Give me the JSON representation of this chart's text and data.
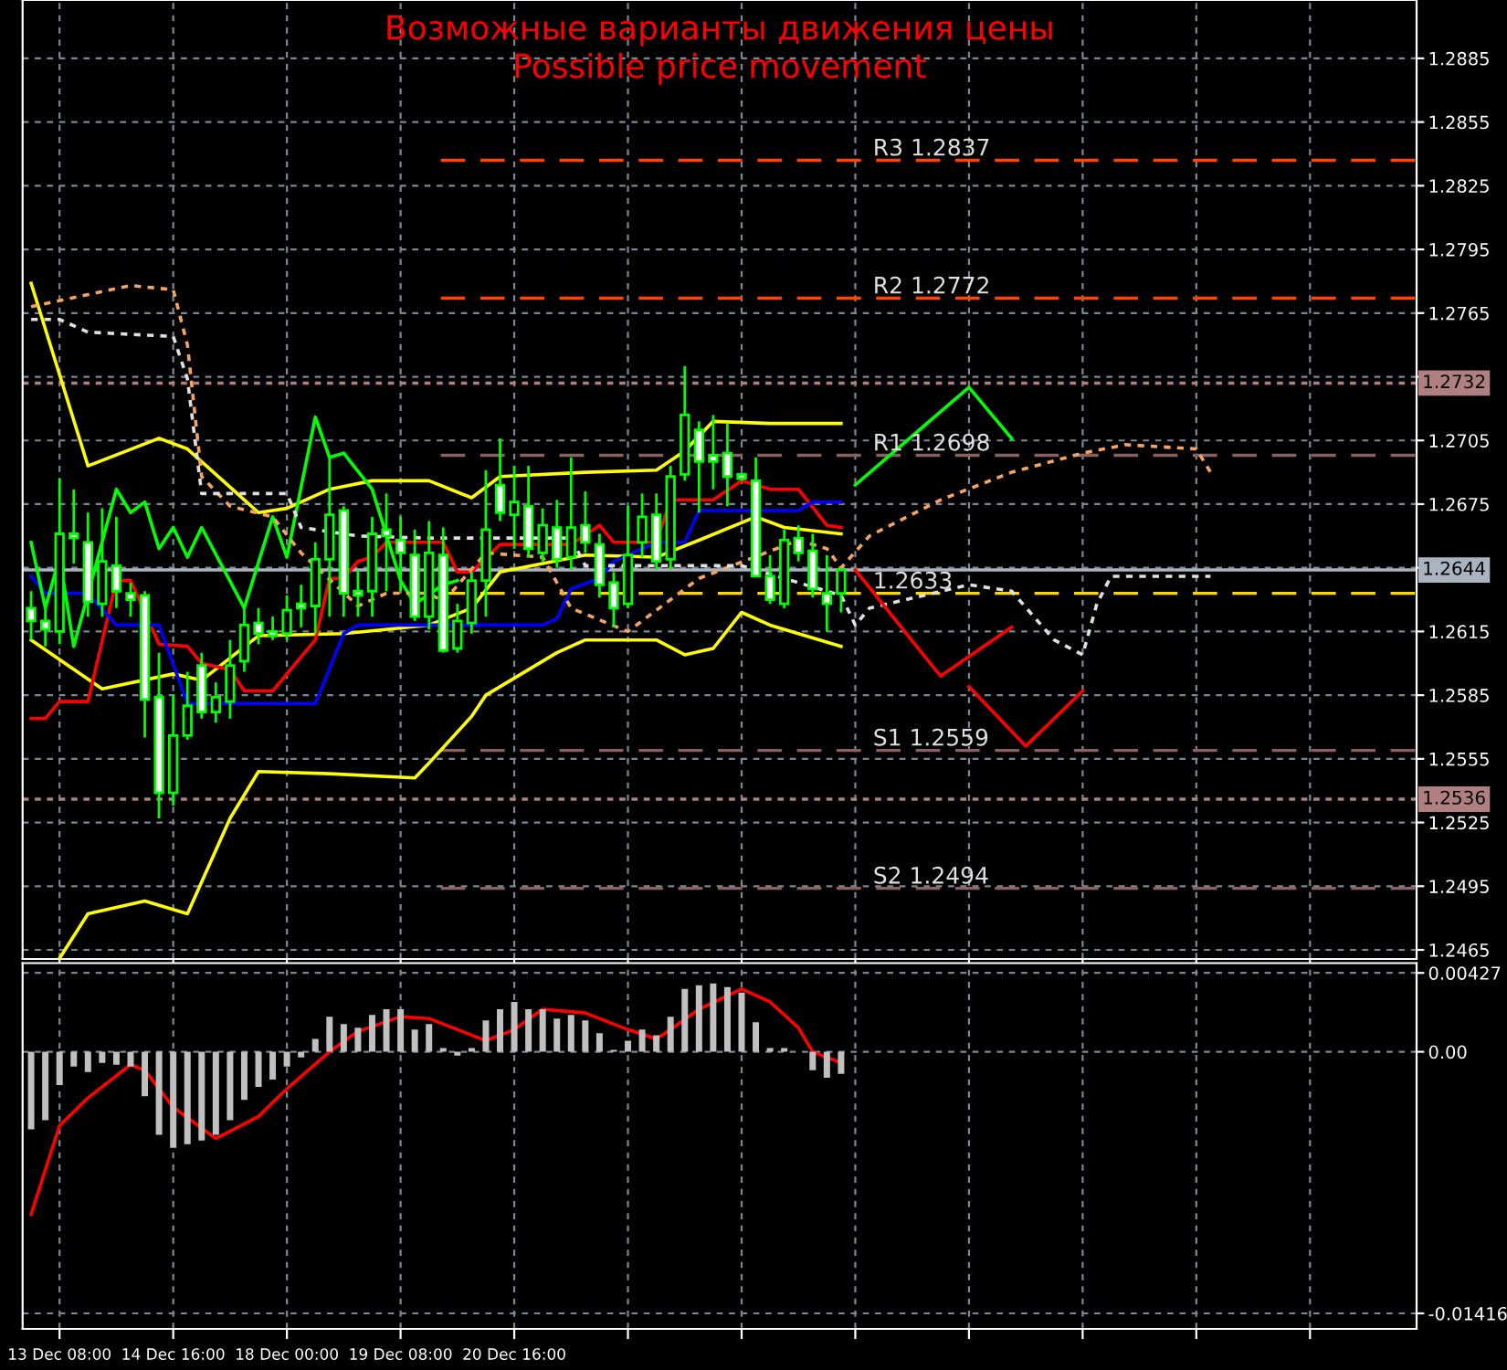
{
  "chart_data": [
    {
      "type": "candlestick",
      "title": "Возможные варианты движения цены",
      "subtitle": "Possible price movement",
      "categories": [
        null,
        null,
        null,
        null,
        null,
        null,
        null,
        null,
        null,
        null,
        null,
        null,
        null,
        null,
        null,
        null,
        null,
        null,
        null,
        null,
        null,
        null,
        null,
        null,
        null,
        null,
        null,
        null,
        null,
        null,
        null,
        null,
        null,
        null,
        null,
        null,
        null,
        null,
        null,
        null,
        null,
        null,
        null,
        null,
        null,
        null,
        null,
        null,
        null,
        null,
        null,
        null,
        null,
        null,
        null,
        null,
        null,
        null,
        null,
        null,
        null,
        null,
        null,
        null,
        null,
        null,
        null,
        null,
        null,
        null,
        null,
        null,
        null,
        null,
        null,
        null,
        null,
        null,
        null,
        null,
        null,
        null,
        null,
        null,
        null,
        null,
        null,
        null,
        null,
        null,
        null,
        null,
        null,
        null,
        null,
        null,
        null,
        null
      ],
      "ohlc": [
        [
          1.2626,
          1.2634,
          1.2611,
          1.262
        ],
        [
          1.262,
          1.2628,
          1.2608,
          1.2616
        ],
        [
          1.2615,
          1.2687,
          1.2609,
          1.2661
        ],
        [
          1.2661,
          1.2682,
          1.2647,
          1.2659
        ],
        [
          1.2657,
          1.2671,
          1.2622,
          1.2629
        ],
        [
          1.2628,
          1.2673,
          1.2622,
          1.2648
        ],
        [
          1.2646,
          1.2669,
          1.2626,
          1.2634
        ],
        [
          1.2633,
          1.2638,
          1.2622,
          1.263
        ],
        [
          1.2632,
          1.2634,
          1.2565,
          1.2583
        ],
        [
          1.2584,
          1.2605,
          1.2527,
          1.2539
        ],
        [
          1.2539,
          1.2585,
          1.2533,
          1.2566
        ],
        [
          1.2566,
          1.2596,
          1.2564,
          1.258
        ],
        [
          1.2599,
          1.2605,
          1.2574,
          1.2577
        ],
        [
          1.2577,
          1.2591,
          1.2572,
          1.2584
        ],
        [
          1.2582,
          1.2611,
          1.2574,
          1.2599
        ],
        [
          1.2601,
          1.2626,
          1.2596,
          1.2618
        ],
        [
          1.2619,
          1.2626,
          1.2609,
          1.2614
        ],
        [
          1.2615,
          1.2622,
          1.2611,
          1.2613
        ],
        [
          1.2614,
          1.2632,
          1.2611,
          1.2625
        ],
        [
          1.2628,
          1.2637,
          1.2617,
          1.2626
        ],
        [
          1.2627,
          1.2657,
          1.2614,
          1.2649
        ],
        [
          1.2649,
          1.2697,
          1.2622,
          1.267
        ],
        [
          1.2672,
          1.2674,
          1.2622,
          1.2633
        ],
        [
          1.2634,
          1.2644,
          1.2622,
          1.2632
        ],
        [
          1.2634,
          1.2669,
          1.2622,
          1.2661
        ],
        [
          1.2663,
          1.268,
          1.2634,
          1.266
        ],
        [
          1.2658,
          1.2669,
          1.2634,
          1.2652
        ],
        [
          1.2651,
          1.2663,
          1.262,
          1.2622
        ],
        [
          1.2622,
          1.2667,
          1.2616,
          1.2652
        ],
        [
          1.2651,
          1.2664,
          1.2605,
          1.2606
        ],
        [
          1.2607,
          1.2628,
          1.2605,
          1.262
        ],
        [
          1.2619,
          1.2643,
          1.2614,
          1.2639
        ],
        [
          1.2639,
          1.2691,
          1.2622,
          1.2663
        ],
        [
          1.2684,
          1.2706,
          1.2667,
          1.2671
        ],
        [
          1.267,
          1.2693,
          1.2654,
          1.2676
        ],
        [
          1.2674,
          1.2693,
          1.265,
          1.2654
        ],
        [
          1.2652,
          1.2673,
          1.2648,
          1.2665
        ],
        [
          1.2664,
          1.2677,
          1.2645,
          1.2649
        ],
        [
          1.265,
          1.2697,
          1.2644,
          1.2664
        ],
        [
          1.2665,
          1.2681,
          1.2652,
          1.2657
        ],
        [
          1.2656,
          1.2661,
          1.2631,
          1.2637
        ],
        [
          1.2638,
          1.2643,
          1.2617,
          1.2626
        ],
        [
          1.2628,
          1.2674,
          1.2626,
          1.2651
        ],
        [
          1.2657,
          1.268,
          1.265,
          1.2669
        ],
        [
          1.267,
          1.268,
          1.2644,
          1.2648
        ],
        [
          1.2649,
          1.2693,
          1.2644,
          1.2688
        ],
        [
          1.2689,
          1.274,
          1.2686,
          1.2717
        ],
        [
          1.271,
          1.2714,
          1.2671,
          1.2695
        ],
        [
          1.2698,
          1.2717,
          1.2682,
          1.2695
        ],
        [
          1.2699,
          1.2713,
          1.2674,
          1.2688
        ],
        [
          1.2689,
          1.269,
          1.2686,
          1.2687
        ],
        [
          1.2686,
          1.2697,
          1.2641,
          1.2641
        ],
        [
          1.2641,
          1.2651,
          1.2628,
          1.263
        ],
        [
          1.2628,
          1.2663,
          1.2626,
          1.2658
        ],
        [
          1.2659,
          1.2665,
          1.2648,
          1.2652
        ],
        [
          1.2653,
          1.2661,
          1.2631,
          1.2635
        ],
        [
          1.2633,
          1.2651,
          1.2615,
          1.2628
        ],
        [
          1.2633,
          1.2645,
          1.2624,
          1.2644
        ],
        null,
        null,
        null,
        null,
        null,
        null,
        null,
        null,
        null,
        null,
        null,
        null,
        null,
        null,
        null,
        null,
        null,
        null,
        null,
        null,
        null,
        null,
        null,
        null,
        null,
        null,
        null,
        null,
        null,
        null,
        null,
        null,
        null,
        null,
        null,
        null,
        null,
        null,
        null,
        null
      ],
      "series": [
        {
          "type": "line",
          "color": "#ffff00",
          "line_style": "solid",
          "values": [
            1.2779,
            null,
            null,
            null,
            1.2693,
            null,
            null,
            null,
            null,
            1.2706,
            null,
            1.2701,
            null,
            null,
            null,
            null,
            1.2671,
            null,
            1.2673,
            null,
            null,
            1.2682,
            null,
            null,
            1.2686,
            null,
            null,
            null,
            1.2686,
            null,
            null,
            1.2678,
            null,
            1.2688,
            null,
            null,
            null,
            null,
            null,
            1.269,
            null,
            null,
            null,
            null,
            1.2691,
            null,
            1.27,
            null,
            1.2714,
            null,
            null,
            null,
            1.2713,
            null,
            null,
            null,
            null,
            1.2713,
            null,
            null,
            null,
            null,
            null,
            null,
            null,
            null,
            null,
            null,
            null,
            null,
            null,
            null,
            null,
            null,
            null,
            null,
            null,
            null,
            null,
            null,
            null,
            null,
            null,
            null,
            null,
            null,
            null,
            null,
            null,
            null,
            null,
            null,
            null,
            null,
            null,
            null,
            null,
            null
          ]
        },
        {
          "type": "line",
          "color": "#ffff00",
          "line_style": "solid",
          "values": [
            1.2611,
            null,
            null,
            null,
            null,
            1.2588,
            null,
            null,
            null,
            null,
            1.2595,
            null,
            1.2592,
            null,
            null,
            null,
            1.2613,
            null,
            null,
            null,
            null,
            null,
            1.2614,
            null,
            null,
            null,
            null,
            null,
            1.2618,
            null,
            null,
            1.2626,
            null,
            1.2643,
            null,
            null,
            null,
            null,
            null,
            1.2651,
            null,
            null,
            null,
            null,
            1.265,
            null,
            null,
            1.2658,
            null,
            null,
            null,
            1.2669,
            null,
            1.2664,
            null,
            null,
            null,
            1.2661,
            null,
            null,
            null,
            null,
            null,
            null,
            null,
            null,
            null,
            null,
            null,
            null,
            null,
            null,
            null,
            null,
            null,
            null,
            null,
            null,
            null,
            null,
            null,
            null,
            null,
            null,
            null,
            null,
            null,
            null,
            null,
            null,
            null,
            null,
            null,
            null,
            null,
            null,
            null,
            null
          ]
        },
        {
          "type": "line",
          "color": "#ffff00",
          "line_style": "solid",
          "values": [
            null,
            null,
            1.2461,
            null,
            1.2482,
            null,
            null,
            null,
            1.2488,
            null,
            null,
            1.2482,
            null,
            null,
            1.2527,
            null,
            1.2549,
            null,
            null,
            null,
            null,
            1.2548,
            null,
            null,
            null,
            null,
            null,
            1.2546,
            1.2553,
            null,
            null,
            1.2575,
            1.2585,
            null,
            null,
            null,
            null,
            1.2605,
            null,
            1.2611,
            null,
            null,
            null,
            null,
            1.2611,
            null,
            1.2604,
            null,
            1.2607,
            null,
            1.2624,
            null,
            1.2618,
            null,
            null,
            null,
            null,
            1.2608,
            null,
            null,
            null,
            null,
            null,
            null,
            null,
            null,
            null,
            null,
            null,
            null,
            null,
            null,
            null,
            null,
            null,
            null,
            null,
            null,
            null,
            null,
            null,
            null,
            null,
            null,
            null,
            null,
            null,
            null,
            null,
            null,
            null,
            null,
            null,
            null,
            null,
            null,
            null,
            null
          ]
        },
        {
          "type": "line",
          "color": "#ff0000",
          "line_style": "solid",
          "values": [
            1.2574,
            1.2574,
            1.2582,
            null,
            1.2582,
            null,
            1.2639,
            1.2639,
            null,
            1.2609,
            null,
            1.2608,
            1.26,
            null,
            1.2597,
            1.2587,
            null,
            1.2587,
            null,
            null,
            1.2611,
            1.264,
            1.264,
            1.2648,
            1.265,
            1.2657,
            null,
            null,
            null,
            1.2657,
            1.2643,
            1.2643,
            null,
            1.2656,
            null,
            null,
            null,
            null,
            1.2656,
            null,
            1.2665,
            1.2657,
            null,
            null,
            1.2657,
            1.2677,
            null,
            null,
            1.2677,
            null,
            1.2686,
            null,
            1.2682,
            null,
            1.2682,
            null,
            1.2665,
            1.2664,
            null,
            null,
            null,
            null,
            null,
            null,
            null,
            null,
            null,
            null,
            null,
            null,
            null,
            null,
            null,
            null,
            null,
            null,
            null,
            null,
            null,
            null,
            null,
            null,
            null,
            null,
            null,
            null,
            null,
            null,
            null,
            null,
            null,
            null,
            null,
            null,
            null,
            null,
            null,
            null
          ]
        },
        {
          "type": "line",
          "color": "#0000ff",
          "line_style": "solid",
          "values": [
            1.2641,
            1.2633,
            null,
            null,
            1.2633,
            null,
            1.2618,
            null,
            null,
            1.2618,
            null,
            1.2581,
            null,
            null,
            null,
            null,
            null,
            null,
            null,
            null,
            1.2581,
            null,
            1.2614,
            1.2618,
            null,
            null,
            null,
            null,
            null,
            null,
            null,
            null,
            null,
            null,
            null,
            null,
            1.2618,
            1.2621,
            1.2635,
            null,
            1.264,
            1.2648,
            null,
            null,
            1.2657,
            null,
            1.2657,
            1.2672,
            null,
            null,
            null,
            null,
            null,
            null,
            1.2672,
            1.2676,
            null,
            1.2676,
            null,
            null,
            null,
            null,
            null,
            null,
            null,
            null,
            null,
            null,
            null,
            null,
            null,
            null,
            null,
            null,
            null,
            null,
            null,
            null,
            null,
            null,
            null,
            null,
            null,
            null,
            null,
            null,
            null,
            null,
            null,
            null,
            null,
            null,
            null,
            null,
            null,
            null,
            null,
            null
          ]
        },
        {
          "type": "line",
          "color": "#00ff00",
          "line_style": "solid",
          "values": [
            1.2657,
            1.2626,
            1.265,
            1.2608,
            null,
            null,
            1.2682,
            1.2671,
            1.2676,
            1.2654,
            1.2664,
            1.265,
            1.2664,
            null,
            null,
            1.2626,
            null,
            1.2669,
            1.265,
            null,
            1.2716,
            1.2697,
            1.2699,
            null,
            1.2682,
            null,
            1.2639,
            1.2628,
            null,
            1.2637,
            1.2639,
            null,
            null,
            null,
            null,
            null,
            null,
            null,
            null,
            null,
            null,
            null,
            null,
            null,
            null,
            null,
            null,
            null,
            null,
            null,
            null,
            null,
            null,
            null,
            null,
            null,
            null,
            null,
            null,
            null,
            null,
            null,
            null,
            null,
            null,
            null,
            null,
            null,
            null,
            null,
            null,
            null,
            null,
            null,
            null,
            null,
            null,
            null,
            null,
            null,
            null,
            null,
            null,
            null,
            null,
            null,
            null,
            null,
            null,
            null,
            null,
            null,
            null,
            null,
            null,
            null,
            null,
            null
          ]
        },
        {
          "type": "line",
          "color": "#f4a460",
          "line_style": "dotted",
          "values": [
            1.2768,
            null,
            null,
            null,
            null,
            null,
            null,
            1.2778,
            null,
            null,
            1.2776,
            1.275,
            1.2688,
            null,
            1.2674,
            null,
            null,
            1.2669,
            null,
            1.2652,
            null,
            null,
            null,
            1.2627,
            null,
            1.2633,
            null,
            null,
            1.2633,
            1.2629,
            null,
            null,
            1.2652,
            null,
            null,
            null,
            1.265,
            null,
            1.2626,
            null,
            null,
            null,
            1.2615,
            1.262,
            null,
            null,
            null,
            1.264,
            null,
            null,
            null,
            null,
            null,
            null,
            1.2658,
            null,
            1.2654,
            1.2645,
            null,
            1.266,
            null,
            null,
            null,
            null,
            1.2677,
            null,
            null,
            null,
            null,
            1.269,
            null,
            null,
            null,
            null,
            1.2699,
            null,
            null,
            1.2703,
            null,
            null,
            null,
            null,
            1.2701,
            1.269,
            null,
            null,
            null,
            null,
            null,
            null,
            null,
            null,
            null,
            null,
            null,
            null,
            null,
            null
          ]
        },
        {
          "type": "line",
          "color": "#e0e0e0",
          "line_style": "dotted",
          "values": [
            1.2762,
            null,
            1.2762,
            null,
            1.2756,
            null,
            null,
            null,
            null,
            null,
            1.2754,
            1.2734,
            1.268,
            null,
            null,
            null,
            null,
            null,
            1.268,
            1.2664,
            null,
            null,
            null,
            1.266,
            null,
            null,
            null,
            null,
            1.2659,
            null,
            null,
            null,
            null,
            null,
            null,
            null,
            null,
            null,
            1.2659,
            1.2646,
            null,
            null,
            null,
            null,
            null,
            null,
            null,
            null,
            null,
            null,
            1.2646,
            null,
            null,
            null,
            null,
            null,
            null,
            1.2632,
            1.2618,
            1.2626,
            null,
            null,
            null,
            null,
            null,
            null,
            1.2637,
            null,
            null,
            1.2634,
            null,
            null,
            1.2611,
            null,
            1.2604,
            1.2628,
            1.2641,
            null,
            null,
            null,
            null,
            null,
            null,
            1.2641,
            null,
            null,
            null,
            null,
            null,
            null,
            null,
            null,
            null,
            null,
            null,
            null,
            null,
            null
          ]
        },
        {
          "type": "line",
          "color": "#00ff00",
          "line_style": "solid",
          "values": [
            null,
            null,
            null,
            null,
            null,
            null,
            null,
            null,
            null,
            null,
            null,
            null,
            null,
            null,
            null,
            null,
            null,
            null,
            null,
            null,
            null,
            null,
            null,
            null,
            null,
            null,
            null,
            null,
            null,
            null,
            null,
            null,
            null,
            null,
            null,
            null,
            null,
            null,
            null,
            null,
            null,
            null,
            null,
            null,
            null,
            null,
            null,
            null,
            null,
            null,
            null,
            null,
            null,
            null,
            null,
            null,
            null,
            null,
            1.2684,
            null,
            null,
            null,
            null,
            null,
            null,
            null,
            1.273,
            null,
            null,
            1.2706,
            null,
            null,
            null,
            null,
            null,
            null,
            null,
            null,
            null,
            null,
            null,
            null,
            null,
            null,
            null,
            null,
            null,
            null,
            null,
            null,
            null,
            null,
            null,
            null,
            null,
            null,
            null,
            null
          ]
        },
        {
          "type": "line",
          "color": "#ff0000",
          "line_style": "solid",
          "values": [
            null,
            null,
            null,
            null,
            null,
            null,
            null,
            null,
            null,
            null,
            null,
            null,
            null,
            null,
            null,
            null,
            null,
            null,
            null,
            null,
            null,
            null,
            null,
            null,
            null,
            null,
            null,
            null,
            null,
            null,
            null,
            null,
            null,
            null,
            null,
            null,
            null,
            null,
            null,
            null,
            null,
            null,
            null,
            null,
            null,
            null,
            null,
            null,
            null,
            null,
            null,
            null,
            null,
            null,
            null,
            null,
            null,
            null,
            1.2644,
            null,
            null,
            null,
            null,
            null,
            1.2594,
            null,
            null,
            null,
            null,
            1.2617,
            null,
            null,
            null,
            null,
            null,
            null,
            null,
            null,
            null,
            null,
            null,
            null,
            null,
            null,
            null,
            null,
            null,
            null,
            null,
            null,
            null,
            null,
            null,
            null,
            null,
            null,
            null,
            null
          ]
        },
        {
          "type": "line",
          "color": "#ff0000",
          "line_style": "solid",
          "values": [
            null,
            null,
            null,
            null,
            null,
            null,
            null,
            null,
            null,
            null,
            null,
            null,
            null,
            null,
            null,
            null,
            null,
            null,
            null,
            null,
            null,
            null,
            null,
            null,
            null,
            null,
            null,
            null,
            null,
            null,
            null,
            null,
            null,
            null,
            null,
            null,
            null,
            null,
            null,
            null,
            null,
            null,
            null,
            null,
            null,
            null,
            null,
            null,
            null,
            null,
            null,
            null,
            null,
            null,
            null,
            null,
            null,
            null,
            null,
            null,
            null,
            null,
            null,
            null,
            null,
            null,
            1.2589,
            null,
            null,
            null,
            1.2561,
            null,
            null,
            null,
            1.2587,
            null,
            null,
            null,
            null,
            null,
            null,
            null,
            null,
            null,
            null,
            null,
            null,
            null,
            null,
            null,
            null,
            null,
            null,
            null,
            null,
            null,
            null,
            null
          ]
        }
      ],
      "ref_lines": [
        {
          "axis": "y",
          "value": 1.2837,
          "label": "R3 1.2837",
          "color": "#ff4500",
          "line_style": "dashed"
        },
        {
          "axis": "y",
          "value": 1.2772,
          "label": "R2 1.2772",
          "color": "#ff4500",
          "line_style": "dashed"
        },
        {
          "axis": "y",
          "value": 1.2698,
          "label": "R1 1.2698",
          "color": "#8b6060",
          "line_style": "dashed"
        },
        {
          "axis": "y",
          "value": 1.2633,
          "label": "1.2633",
          "color": "#ffd700",
          "line_style": "dashed"
        },
        {
          "axis": "y",
          "value": 1.2559,
          "label": "S1 1.2559",
          "color": "#8b6060",
          "line_style": "dashed"
        },
        {
          "axis": "y",
          "value": 1.2494,
          "label": "S2 1.2494",
          "color": "#8b6060",
          "line_style": "dashed"
        },
        {
          "axis": "y",
          "value": 1.2732,
          "label": "1.2732",
          "color": "#b08080",
          "line_style": "dotted"
        },
        {
          "axis": "y",
          "value": 1.2536,
          "label": "1.2536",
          "color": "#b08080",
          "line_style": "dotted"
        },
        {
          "axis": "y",
          "value": 1.2644,
          "label": "1.2644",
          "color": "#a9b4c0",
          "line_style": "solid"
        }
      ],
      "ylim": [
        1.24607,
        1.29125
      ],
      "yticks": [
        1.2885,
        1.2855,
        1.2825,
        1.2795,
        1.2765,
        {
          "value": 1.2735,
          "label": null
        },
        1.2705,
        1.2675,
        {
          "value": 1.2645,
          "label": null
        },
        1.2615,
        1.2585,
        1.2555,
        1.2525,
        1.2495,
        1.2465
      ],
      "tick_labels": "y",
      "grid": true
    },
    {
      "type": "bar",
      "color": "#c0c0c0",
      "categories": [
        null,
        null,
        "13 Dec 08:00",
        null,
        null,
        null,
        null,
        null,
        null,
        null,
        "14 Dec 16:00",
        null,
        null,
        null,
        null,
        null,
        null,
        null,
        "18 Dec 00:00",
        null,
        null,
        null,
        null,
        null,
        null,
        null,
        "19 Dec 08:00",
        null,
        null,
        null,
        null,
        null,
        null,
        null,
        "20 Dec 16:00",
        null,
        null,
        null,
        null,
        null,
        null,
        null,
        null,
        null,
        null,
        null,
        null,
        null,
        null,
        null,
        null,
        null,
        null,
        null,
        null,
        null,
        null,
        null,
        null,
        null,
        null,
        null,
        null,
        null,
        null,
        null,
        null,
        null,
        null,
        null,
        null,
        null,
        null,
        null,
        null,
        null,
        null,
        null,
        null,
        null,
        null,
        null,
        null,
        null,
        null,
        null,
        null,
        null,
        null,
        null,
        null,
        null,
        null,
        null,
        null,
        null,
        null,
        null
      ],
      "values": [
        -0.0042,
        -0.0037,
        -0.0018,
        -0.0008,
        -0.0011,
        -0.0006,
        -0.0007,
        -0.0008,
        -0.0024,
        -0.0045,
        -0.0052,
        -0.005,
        -0.0048,
        -0.0045,
        -0.0037,
        -0.0026,
        -0.0019,
        -0.0015,
        -0.0008,
        -0.0003,
        0.0007,
        0.0019,
        0.0015,
        0.0013,
        0.002,
        0.0023,
        0.0023,
        0.0012,
        0.0015,
        0.0002,
        -0.0002,
        0.0002,
        0.0017,
        0.0023,
        0.0027,
        0.0023,
        0.0023,
        0.0018,
        0.002,
        0.0017,
        0.001,
        0.0001,
        0.0006,
        0.0012,
        0.0009,
        0.0019,
        0.0034,
        0.0036,
        0.0037,
        0.0035,
        0.0032,
        0.0016,
        0.0002,
        0.0002,
        0.0,
        -0.001,
        -0.0014,
        -0.0012,
        null,
        null,
        null,
        null,
        null,
        null,
        null,
        null,
        null,
        null,
        null,
        null,
        null,
        null,
        null,
        null,
        null,
        null,
        null,
        null,
        null,
        null,
        null,
        null,
        null,
        null,
        null,
        null,
        null,
        null,
        null,
        null,
        null,
        null,
        null,
        null,
        null,
        null,
        null,
        null
      ],
      "series": [
        {
          "type": "line",
          "color": "#ff0000",
          "line_style": "solid",
          "values": [
            -0.0088,
            null,
            -0.004,
            null,
            -0.0025,
            null,
            null,
            -0.0007,
            -0.001,
            null,
            -0.003,
            null,
            null,
            -0.0047,
            null,
            null,
            -0.0035,
            null,
            -0.002,
            null,
            null,
            0.0,
            null,
            0.0011,
            null,
            null,
            0.0019,
            null,
            0.0018,
            null,
            null,
            null,
            0.0006,
            null,
            0.0012,
            null,
            0.0023,
            null,
            null,
            0.0021,
            null,
            null,
            0.0012,
            null,
            0.0007,
            0.0012,
            null,
            0.0023,
            null,
            null,
            0.0034,
            null,
            0.0027,
            null,
            0.0013,
            0.0,
            null,
            -0.0006,
            null,
            null,
            null,
            null,
            null,
            null,
            null,
            null,
            null,
            null,
            null,
            null,
            null,
            null,
            null,
            null,
            null,
            null,
            null,
            null,
            null,
            null,
            null,
            null,
            null,
            null,
            null,
            null,
            null,
            null,
            null,
            null,
            null,
            null,
            null,
            null,
            null,
            null,
            null,
            null
          ]
        }
      ],
      "ylim": [
        -0.015,
        0.0048
      ],
      "yticks": [
        {
          "value": 0.00427,
          "label": "0.00427"
        },
        {
          "value": 0.0,
          "label": "0.00"
        },
        {
          "value": -0.01416,
          "label": "-0.01416"
        }
      ],
      "grid": true
    }
  ]
}
